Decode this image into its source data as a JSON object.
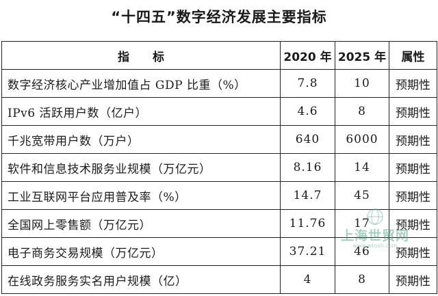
{
  "document": {
    "title": "“十四五”数字经济发展主要指标"
  },
  "table": {
    "headers": {
      "indicator": "指　　标",
      "y2020": "2020 年",
      "y2025": "2025 年",
      "attribute": "属性"
    },
    "rows": [
      {
        "indicator": "数字经济核心产业增加值占 GDP 比重（%）",
        "v2020": "7.8",
        "v2025": "10",
        "attribute": "预期性"
      },
      {
        "indicator": "IPv6 活跃用户数（亿户）",
        "v2020": "4.6",
        "v2025": "8",
        "attribute": "预期性"
      },
      {
        "indicator": "千兆宽带用户数（万户）",
        "v2020": "640",
        "v2025": "6000",
        "attribute": "预期性"
      },
      {
        "indicator": "软件和信息技术服务业规模（万亿元）",
        "v2020": "8.16",
        "v2025": "14",
        "attribute": "预期性"
      },
      {
        "indicator": "工业互联网平台应用普及率（%）",
        "v2020": "14.7",
        "v2025": "45",
        "attribute": "预期性"
      },
      {
        "indicator": "全国网上零售额（万亿元）",
        "v2020": "11.76",
        "v2025": "17",
        "attribute": "预期性"
      },
      {
        "indicator": "电子商务交易规模（万亿元）",
        "v2020": "37.21",
        "v2025": "46",
        "attribute": "预期性"
      },
      {
        "indicator": "在线政务服务实名用户规模（亿）",
        "v2020": "4",
        "v2025": "8",
        "attribute": "预期性"
      }
    ]
  },
  "watermark": {
    "text": "上海世贸网",
    "url_text": "www.wtosh.com"
  }
}
